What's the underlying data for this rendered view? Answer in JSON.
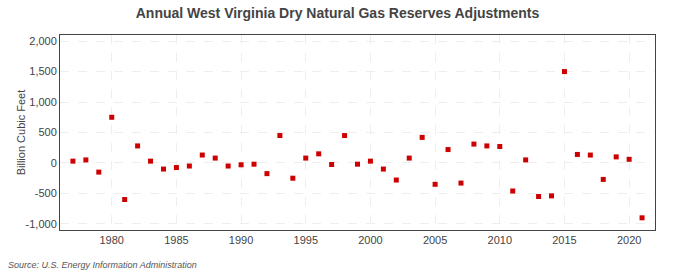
{
  "chart_data": {
    "type": "scatter",
    "title": "Annual West Virginia Dry Natural Gas Reserves Adjustments",
    "ylabel": "Billion Cubic Feet",
    "source": "Source: U.S. Energy Information Administration",
    "color": "#cc0000",
    "marker": "square",
    "grid": true,
    "xlim": [
      1976,
      2022
    ],
    "ylim": [
      -1100,
      2100
    ],
    "xticks": [
      1980,
      1985,
      1990,
      1995,
      2000,
      2005,
      2010,
      2015,
      2020
    ],
    "yticks": [
      {
        "value": -1000,
        "label": "-1,000"
      },
      -500,
      0,
      500,
      {
        "value": 1000,
        "label": "1,000"
      },
      {
        "value": 1500,
        "label": "1,500"
      },
      {
        "value": 2000,
        "label": "2,000"
      }
    ],
    "x": [
      1977,
      1978,
      1979,
      1980,
      1981,
      1982,
      1983,
      1984,
      1985,
      1986,
      1987,
      1988,
      1989,
      1990,
      1991,
      1992,
      1993,
      1994,
      1995,
      1996,
      1997,
      1998,
      1999,
      2000,
      2001,
      2002,
      2003,
      2004,
      2005,
      2006,
      2007,
      2008,
      2009,
      2010,
      2011,
      2012,
      2013,
      2014,
      2015,
      2016,
      2017,
      2018,
      2019,
      2020,
      2021
    ],
    "values": [
      30,
      50,
      -150,
      750,
      -600,
      280,
      30,
      -100,
      -75,
      -50,
      130,
      80,
      -50,
      -30,
      -20,
      -175,
      450,
      -250,
      80,
      150,
      -25,
      450,
      -20,
      30,
      -100,
      -280,
      80,
      420,
      -350,
      220,
      -330,
      310,
      280,
      270,
      -460,
      50,
      -550,
      -540,
      1500,
      140,
      130,
      -270,
      100,
      60,
      -900
    ]
  }
}
